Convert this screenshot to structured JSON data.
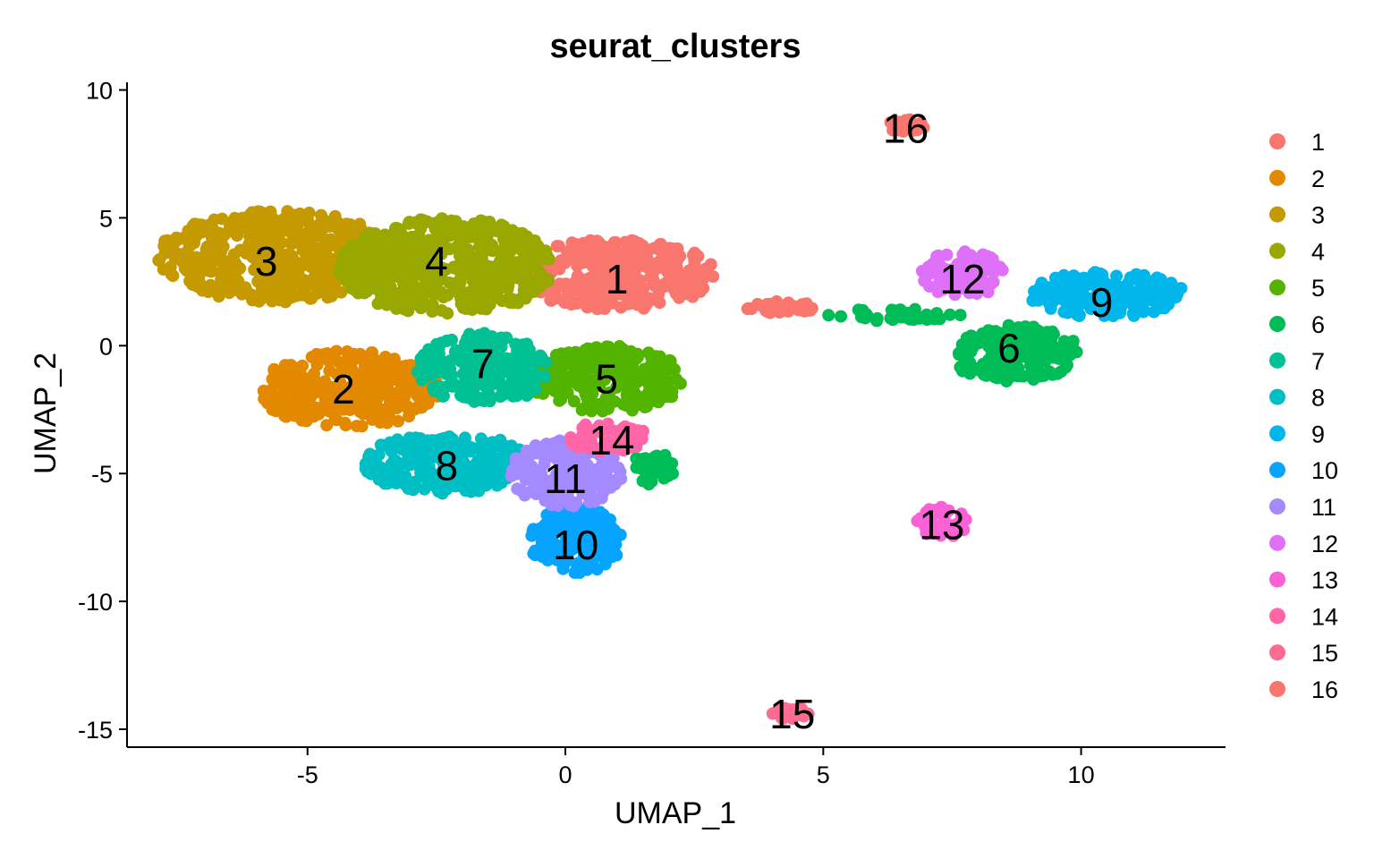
{
  "chart_data": {
    "type": "scatter",
    "title": "seurat_clusters",
    "xlabel": "UMAP_1",
    "ylabel": "UMAP_2",
    "xlim": [
      -8.5,
      12.8
    ],
    "ylim": [
      -15.7,
      10.3
    ],
    "xticks": [
      -5,
      0,
      5,
      10
    ],
    "yticks": [
      10,
      5,
      0,
      -5,
      -10,
      -15
    ],
    "xtick_labels": [
      "-5",
      "0",
      "5",
      "10"
    ],
    "ytick_labels": [
      "10",
      "5",
      "0",
      "-5",
      "-10",
      "-15"
    ],
    "grid": false,
    "legend_position": "right",
    "series": [
      {
        "name": "1",
        "color": "#F8766D",
        "center": [
          1.0,
          2.6
        ],
        "regions": [
          {
            "cx": 1.0,
            "cy": 2.8,
            "rx": 1.9,
            "ry": 1.4
          },
          {
            "cx": 4.2,
            "cy": 1.5,
            "rx": 0.7,
            "ry": 0.25
          }
        ]
      },
      {
        "name": "2",
        "color": "#E38900",
        "center": [
          -4.3,
          -1.7
        ],
        "regions": [
          {
            "cx": -4.2,
            "cy": -1.7,
            "rx": 1.8,
            "ry": 1.5
          }
        ]
      },
      {
        "name": "3",
        "color": "#C49A00",
        "center": [
          -5.8,
          3.3
        ],
        "regions": [
          {
            "cx": -5.6,
            "cy": 3.5,
            "rx": 2.3,
            "ry": 1.8
          }
        ]
      },
      {
        "name": "4",
        "color": "#99A800",
        "center": [
          -2.5,
          3.3
        ],
        "regions": [
          {
            "cx": -2.3,
            "cy": 3.1,
            "rx": 2.1,
            "ry": 1.9
          }
        ]
      },
      {
        "name": "5",
        "color": "#53B400",
        "center": [
          0.8,
          -1.3
        ],
        "regions": [
          {
            "cx": 0.8,
            "cy": -1.3,
            "rx": 1.5,
            "ry": 1.3
          }
        ]
      },
      {
        "name": "6",
        "color": "#00BC56",
        "center": [
          8.6,
          -0.1
        ],
        "regions": [
          {
            "cx": 8.7,
            "cy": -0.3,
            "rx": 1.3,
            "ry": 1.1
          },
          {
            "cx": 6.4,
            "cy": 1.2,
            "rx": 1.3,
            "ry": 0.25
          },
          {
            "cx": 1.7,
            "cy": -4.8,
            "rx": 0.4,
            "ry": 0.7
          }
        ]
      },
      {
        "name": "7",
        "color": "#00C094",
        "center": [
          -1.6,
          -0.7
        ],
        "regions": [
          {
            "cx": -1.6,
            "cy": -0.9,
            "rx": 1.3,
            "ry": 1.4
          }
        ]
      },
      {
        "name": "8",
        "color": "#00BFC4",
        "center": [
          -2.3,
          -4.7
        ],
        "regions": [
          {
            "cx": -2.3,
            "cy": -4.6,
            "rx": 1.6,
            "ry": 1.2
          }
        ]
      },
      {
        "name": "9",
        "color": "#00B6EB",
        "center": [
          10.4,
          1.7
        ],
        "regions": [
          {
            "cx": 10.5,
            "cy": 2.0,
            "rx": 1.5,
            "ry": 0.9
          }
        ]
      },
      {
        "name": "10",
        "color": "#06A4FF",
        "center": [
          0.2,
          -7.8
        ],
        "regions": [
          {
            "cx": 0.2,
            "cy": -7.6,
            "rx": 0.9,
            "ry": 1.3
          }
        ]
      },
      {
        "name": "11",
        "color": "#A58AFF",
        "center": [
          0.0,
          -5.2
        ],
        "regions": [
          {
            "cx": 0.0,
            "cy": -5.0,
            "rx": 1.1,
            "ry": 1.3
          }
        ]
      },
      {
        "name": "12",
        "color": "#DF70F8",
        "center": [
          7.7,
          2.6
        ],
        "regions": [
          {
            "cx": 7.7,
            "cy": 2.8,
            "rx": 0.8,
            "ry": 0.9
          }
        ]
      },
      {
        "name": "13",
        "color": "#FB61D7",
        "center": [
          7.3,
          -7.0
        ],
        "regions": [
          {
            "cx": 7.3,
            "cy": -6.9,
            "rx": 0.5,
            "ry": 0.6
          }
        ]
      },
      {
        "name": "14",
        "color": "#FF66A8",
        "center": [
          0.9,
          -3.7
        ],
        "regions": [
          {
            "cx": 0.8,
            "cy": -3.6,
            "rx": 0.8,
            "ry": 0.6
          }
        ]
      },
      {
        "name": "15",
        "color": "#FF6C91",
        "center": [
          4.4,
          -14.4
        ],
        "regions": [
          {
            "cx": 4.4,
            "cy": -14.4,
            "rx": 0.4,
            "ry": 0.25
          }
        ]
      },
      {
        "name": "16",
        "color": "#F8766D",
        "center": [
          6.6,
          8.5
        ],
        "regions": [
          {
            "cx": 6.6,
            "cy": 8.6,
            "rx": 0.4,
            "ry": 0.25
          }
        ]
      }
    ]
  }
}
